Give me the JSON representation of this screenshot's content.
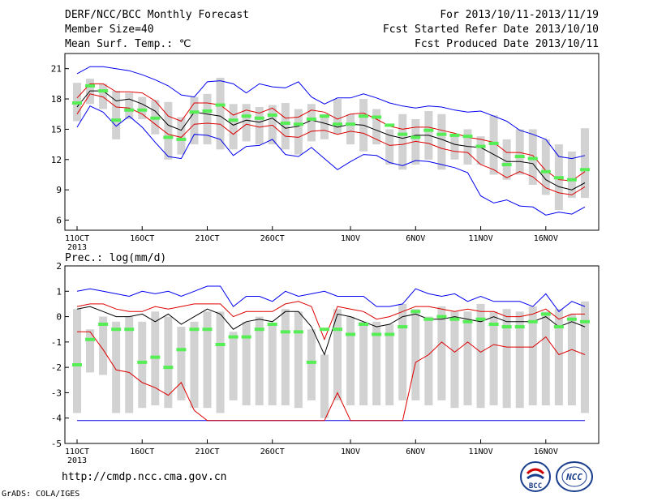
{
  "header": {
    "title": "DERF/NCC/BCC Monthly Forecast",
    "member_size": "Member Size=40",
    "variable": "Mean Surf. Temp.: ℃",
    "period": "For 2013/10/11-2013/11/19",
    "fcst_started": "Fcst Started Refer Date 2013/10/10",
    "fcst_produced": "Fcst Produced Date 2013/10/11"
  },
  "footer": {
    "url": "http://cmdp.ncc.cma.gov.cn",
    "grads_credit": "GrADS: COLA/IGES",
    "logo_bcc": "BCC",
    "logo_ncc": "NCC"
  },
  "colors": {
    "blue_line": "#0000ee",
    "red_line": "#dd0000",
    "mean_line": "#000000",
    "obs_marker": "#55ee55",
    "box": "#d2d2d2"
  },
  "chart_data": [
    {
      "type": "line",
      "title": "",
      "ylabel": "Mean Surf. Temp.: ℃",
      "ylim": [
        5,
        22.5
      ],
      "yticks": [
        6,
        9,
        12,
        15,
        18,
        21
      ],
      "x": [
        1,
        2,
        3,
        4,
        5,
        6,
        7,
        8,
        9,
        10,
        11,
        12,
        13,
        14,
        15,
        16,
        17,
        18,
        19,
        20,
        21,
        22,
        23,
        24,
        25,
        26,
        27,
        28,
        29,
        30,
        31,
        32,
        33,
        34,
        35,
        36,
        37,
        38,
        39,
        40
      ],
      "xticks": [
        {
          "x": 1,
          "label": "11OCT",
          "sub": "2013"
        },
        {
          "x": 6,
          "label": "16OCT"
        },
        {
          "x": 11,
          "label": "21OCT"
        },
        {
          "x": 16,
          "label": "26OCT"
        },
        {
          "x": 22,
          "label": "1NOV"
        },
        {
          "x": 27,
          "label": "6NOV"
        },
        {
          "x": 32,
          "label": "11NOV"
        },
        {
          "x": 37,
          "label": "16NOV"
        }
      ],
      "series": [
        {
          "role": "upper-blue",
          "values": [
            20.5,
            21.2,
            21.2,
            21.0,
            20.8,
            20.4,
            19.9,
            19.3,
            18.4,
            18.2,
            19.7,
            19.8,
            19.5,
            18.6,
            19.5,
            19.2,
            19.1,
            19.7,
            18.2,
            17.5,
            18.1,
            18.1,
            18.5,
            18.1,
            17.6,
            17.3,
            17.1,
            17.3,
            17.2,
            16.9,
            16.7,
            16.8,
            16.3,
            15.8,
            14.9,
            14.5,
            14.0,
            12.3,
            12.1,
            12.4
          ]
        },
        {
          "role": "upper-red",
          "values": [
            18.1,
            19.5,
            19.5,
            18.7,
            18.7,
            18.6,
            17.8,
            16.3,
            15.8,
            17.6,
            17.6,
            17.4,
            16.4,
            16.9,
            16.6,
            17.1,
            16.1,
            16.2,
            16.9,
            16.7,
            16.0,
            16.5,
            16.6,
            16.0,
            15.3,
            15.0,
            15.2,
            15.2,
            14.9,
            14.6,
            14.2,
            14.0,
            13.7,
            12.7,
            12.7,
            12.4,
            10.9,
            10.0,
            9.9,
            10.8
          ]
        },
        {
          "role": "mean",
          "values": [
            17.2,
            18.8,
            18.8,
            17.8,
            18.0,
            17.5,
            16.8,
            15.4,
            14.9,
            16.7,
            16.5,
            16.3,
            15.4,
            15.9,
            15.7,
            16.1,
            15.1,
            15.3,
            15.9,
            15.6,
            15.2,
            15.5,
            15.4,
            14.9,
            14.4,
            14.1,
            14.4,
            14.4,
            14.0,
            13.5,
            13.3,
            13.2,
            12.5,
            11.8,
            11.8,
            11.6,
            10.0,
            9.3,
            9.0,
            9.7
          ]
        },
        {
          "role": "lower-red",
          "values": [
            16.5,
            18.5,
            18.2,
            17.2,
            17.1,
            16.5,
            15.5,
            14.5,
            14.2,
            15.5,
            15.6,
            15.5,
            14.5,
            15.5,
            15.2,
            15.4,
            14.3,
            14.2,
            14.8,
            14.9,
            14.5,
            14.8,
            14.6,
            14.0,
            13.4,
            13.5,
            13.8,
            13.6,
            13.1,
            12.8,
            12.7,
            11.5,
            11.0,
            10.2,
            10.8,
            10.3,
            9.2,
            8.7,
            8.5,
            9.3
          ]
        },
        {
          "role": "lower-blue",
          "values": [
            15.2,
            17.3,
            16.7,
            15.3,
            16.3,
            15.2,
            13.7,
            12.3,
            12.1,
            14.5,
            14.4,
            14.0,
            12.4,
            13.3,
            13.4,
            14.0,
            12.5,
            12.3,
            13.2,
            12.1,
            11.0,
            11.8,
            12.5,
            12.4,
            11.7,
            11.4,
            11.9,
            11.8,
            11.5,
            11.2,
            10.7,
            8.4,
            7.7,
            8.0,
            7.4,
            7.3,
            6.5,
            6.8,
            6.6,
            7.3
          ]
        },
        {
          "role": "box-top",
          "values": [
            19.6,
            20.0,
            19.5,
            18.8,
            18.6,
            18.2,
            17.9,
            17.7,
            16.2,
            18.2,
            18.5,
            20.1,
            17.5,
            17.5,
            17.2,
            17.4,
            17.6,
            17.0,
            17.5,
            16.5,
            18.0,
            16.5,
            18.0,
            17.0,
            15.0,
            16.5,
            16.0,
            16.8,
            16.5,
            14.5,
            15.0,
            14.3,
            16.4,
            14.0,
            15.0,
            15.0,
            14.0,
            13.5,
            12.8,
            15.1
          ]
        },
        {
          "role": "box-bottom",
          "values": [
            15.8,
            17.5,
            17.0,
            14.0,
            16.0,
            16.0,
            14.5,
            12.0,
            12.5,
            13.5,
            13.5,
            13.0,
            13.0,
            13.8,
            13.5,
            13.5,
            13.0,
            12.5,
            13.8,
            14.0,
            14.5,
            13.5,
            12.8,
            13.5,
            11.5,
            11.0,
            11.5,
            12.0,
            11.0,
            12.0,
            11.5,
            11.5,
            10.5,
            10.0,
            10.5,
            9.5,
            8.5,
            7.0,
            8.2,
            8.2
          ]
        },
        {
          "role": "obs",
          "values": [
            17.6,
            19.3,
            18.8,
            15.9,
            16.9,
            16.9,
            16.1,
            14.2,
            14.0,
            16.7,
            16.8,
            17.4,
            15.9,
            16.3,
            16.1,
            16.4,
            15.6,
            15.5,
            16.0,
            16.3,
            15.5,
            15.5,
            16.3,
            16.2,
            15.4,
            14.5,
            14.2,
            14.9,
            14.5,
            14.4,
            14.3,
            13.3,
            13.6,
            11.5,
            12.3,
            12.1,
            10.8,
            10.2,
            10.0,
            11.0
          ]
        }
      ]
    },
    {
      "type": "line",
      "title": "",
      "ylabel": "Prec.: log(mm/d)",
      "ylim": [
        -5,
        2
      ],
      "yticks": [
        -5,
        -4,
        -3,
        -2,
        -1,
        0,
        1,
        2
      ],
      "x": [
        1,
        2,
        3,
        4,
        5,
        6,
        7,
        8,
        9,
        10,
        11,
        12,
        13,
        14,
        15,
        16,
        17,
        18,
        19,
        20,
        21,
        22,
        23,
        24,
        25,
        26,
        27,
        28,
        29,
        30,
        31,
        32,
        33,
        34,
        35,
        36,
        37,
        38,
        39,
        40
      ],
      "xticks": [
        {
          "x": 1,
          "label": "11OCT",
          "sub": "2013"
        },
        {
          "x": 6,
          "label": "16OCT"
        },
        {
          "x": 11,
          "label": "21OCT"
        },
        {
          "x": 16,
          "label": "26OCT"
        },
        {
          "x": 22,
          "label": "1NOV"
        },
        {
          "x": 27,
          "label": "6NOV"
        },
        {
          "x": 32,
          "label": "11NOV"
        },
        {
          "x": 37,
          "label": "16NOV"
        }
      ],
      "series": [
        {
          "role": "upper-blue",
          "values": [
            1.0,
            1.1,
            1.0,
            0.9,
            0.8,
            1.0,
            0.9,
            1.0,
            0.8,
            1.0,
            1.2,
            1.2,
            0.4,
            0.8,
            0.8,
            0.6,
            1.0,
            0.8,
            0.9,
            1.0,
            0.8,
            0.8,
            0.8,
            0.4,
            0.4,
            0.5,
            1.1,
            0.9,
            0.8,
            0.9,
            0.6,
            0.8,
            0.6,
            0.6,
            0.6,
            0.4,
            0.9,
            0.2,
            0.6,
            0.4
          ]
        },
        {
          "role": "upper-red",
          "values": [
            0.4,
            0.5,
            0.5,
            0.3,
            0.2,
            0.2,
            0.4,
            0.3,
            0.4,
            0.5,
            0.5,
            0.5,
            0.0,
            0.2,
            0.2,
            0.2,
            0.5,
            0.6,
            0.4,
            -0.9,
            0.4,
            0.3,
            0.2,
            -0.1,
            0.0,
            0.2,
            0.4,
            0.4,
            0.3,
            0.2,
            0.3,
            0.2,
            0.2,
            0.0,
            0.0,
            0.1,
            0.3,
            -0.1,
            0.1,
            0.1
          ]
        },
        {
          "role": "mean",
          "values": [
            0.3,
            0.4,
            0.2,
            0.0,
            0.0,
            0.1,
            -0.2,
            0.1,
            -0.3,
            0.0,
            0.3,
            0.1,
            -0.5,
            -0.2,
            -0.1,
            -0.2,
            0.2,
            0.2,
            -0.4,
            -1.5,
            0.1,
            0.0,
            -0.2,
            -0.4,
            -0.3,
            0.0,
            0.1,
            -0.1,
            -0.1,
            0.0,
            -0.1,
            -0.2,
            0.0,
            -0.2,
            -0.2,
            -0.2,
            0.0,
            -0.4,
            -0.2,
            -0.4
          ]
        },
        {
          "role": "lower-red",
          "values": [
            -0.6,
            -0.6,
            -1.3,
            -2.1,
            -2.2,
            -2.6,
            -2.8,
            -3.1,
            -2.6,
            -3.7,
            -4.1,
            -4.1,
            -4.1,
            -4.1,
            -4.1,
            -4.1,
            -4.1,
            -4.1,
            -4.1,
            -4.1,
            -3.0,
            -4.1,
            -4.1,
            -4.1,
            -4.1,
            -4.1,
            -1.8,
            -1.5,
            -1.0,
            -1.4,
            -1.0,
            -1.4,
            -1.1,
            -1.2,
            -1.2,
            -1.2,
            -0.8,
            -1.5,
            -1.3,
            -1.5
          ]
        },
        {
          "role": "lower-blue",
          "values": [
            -4.1,
            -4.1,
            -4.1,
            -4.1,
            -4.1,
            -4.1,
            -4.1,
            -4.1,
            -4.1,
            -4.1,
            -4.1,
            -4.1,
            -4.1,
            -4.1,
            -4.1,
            -4.1,
            -4.1,
            -4.1,
            -4.1,
            -4.1,
            -4.1,
            -4.1,
            -4.1,
            -4.1,
            -4.1,
            -4.1,
            -4.1,
            -4.1,
            -4.1,
            -4.1,
            -4.1,
            -4.1,
            -4.1,
            -4.1,
            -4.1,
            -4.1,
            -4.1,
            -4.1,
            -4.1,
            -4.1
          ]
        },
        {
          "role": "box-top",
          "values": [
            0.3,
            -0.5,
            0.0,
            -0.2,
            0.0,
            -0.2,
            0.2,
            0.0,
            -0.4,
            -0.2,
            0.2,
            0.2,
            -0.6,
            -0.2,
            0.0,
            -0.3,
            0.3,
            0.2,
            -0.5,
            -1.5,
            0.3,
            0.0,
            -0.2,
            -0.2,
            -0.3,
            0.5,
            0.3,
            0.0,
            0.4,
            0.2,
            0.2,
            0.5,
            0.2,
            0.3,
            0.2,
            0.4,
            0.2,
            0.3,
            0.1,
            0.6
          ]
        },
        {
          "role": "box-bottom",
          "values": [
            -3.8,
            -2.2,
            -2.3,
            -3.8,
            -3.8,
            -3.6,
            -3.5,
            -3.6,
            -3.3,
            -3.6,
            -3.6,
            -3.8,
            -3.3,
            -3.5,
            -3.5,
            -3.5,
            -3.5,
            -3.6,
            -3.3,
            -4.0,
            -3.3,
            -3.5,
            -3.5,
            -3.5,
            -3.5,
            -3.3,
            -3.3,
            -3.5,
            -3.3,
            -3.6,
            -3.5,
            -3.6,
            -3.5,
            -3.6,
            -3.6,
            -3.5,
            -3.5,
            -3.5,
            -3.5,
            -3.8
          ]
        },
        {
          "role": "obs",
          "values": [
            -1.9,
            -0.9,
            -0.3,
            -0.5,
            -0.5,
            -1.8,
            -1.6,
            -2.0,
            -1.3,
            -0.5,
            -0.5,
            -1.1,
            -0.8,
            -0.8,
            -0.5,
            -0.3,
            -0.6,
            -0.6,
            -1.8,
            -0.5,
            -0.5,
            -0.7,
            -0.3,
            -0.7,
            -0.7,
            -0.4,
            0.2,
            -0.1,
            0.0,
            -0.1,
            -0.2,
            -0.1,
            -0.3,
            -0.4,
            -0.4,
            -0.2,
            0.1,
            -0.4,
            -0.1,
            -0.2
          ]
        }
      ]
    }
  ]
}
